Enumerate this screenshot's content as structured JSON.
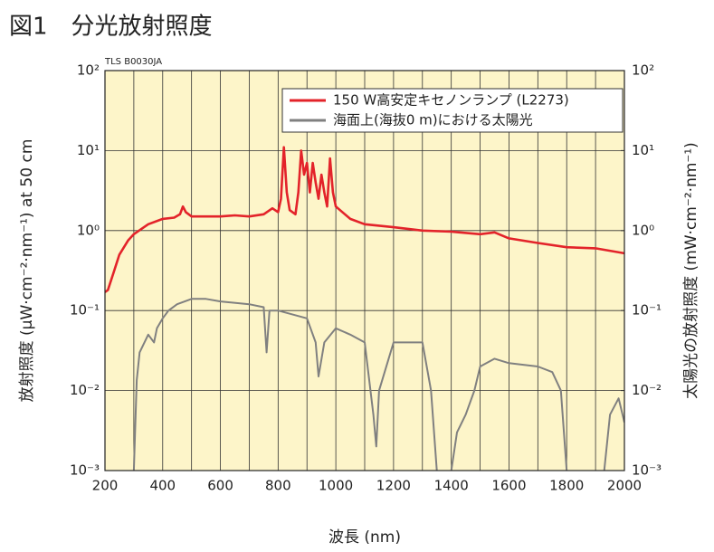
{
  "chart_data": {
    "type": "line",
    "title": "図1　分光放射照度",
    "annotation": "TLS B0030JA",
    "x_label": "波長 (nm)",
    "y_label": "放射照度 (μW·cm⁻²·nm⁻¹) at 50 cm",
    "y2_label": "太陽光の放射照度 (mW·cm⁻²·nm⁻¹)",
    "xlim": [
      200,
      2000
    ],
    "xticks": [
      200,
      400,
      600,
      800,
      1000,
      1200,
      1400,
      1600,
      1800,
      2000
    ],
    "ylim": [
      0.001,
      100
    ],
    "yticks": [
      {
        "value": 0.001,
        "label": "10⁻³"
      },
      {
        "value": 0.01,
        "label": "10⁻²"
      },
      {
        "value": 0.1,
        "label": "10⁻¹"
      },
      {
        "value": 1,
        "label": "10⁰"
      },
      {
        "value": 10,
        "label": "10¹"
      },
      {
        "value": 100,
        "label": "10²"
      }
    ],
    "y2lim": [
      0.001,
      100
    ],
    "y2ticks": [
      {
        "value": 0.001,
        "label": "10⁻³"
      },
      {
        "value": 0.01,
        "label": "10⁻²"
      },
      {
        "value": 0.1,
        "label": "10⁻¹"
      },
      {
        "value": 1,
        "label": "10⁰"
      },
      {
        "value": 10,
        "label": "10¹"
      },
      {
        "value": 100,
        "label": "10²"
      }
    ],
    "log_scale": true,
    "grid": true,
    "legend": "upper right",
    "background": "#fdf5c9",
    "series": [
      {
        "name": "150 W高安定キセノンランプ (L2273)",
        "color": "#e3232a",
        "x": [
          200,
          210,
          230,
          250,
          280,
          300,
          350,
          400,
          440,
          460,
          470,
          480,
          500,
          600,
          650,
          700,
          750,
          780,
          800,
          810,
          820,
          830,
          840,
          860,
          870,
          880,
          890,
          900,
          910,
          920,
          930,
          940,
          950,
          960,
          970,
          980,
          990,
          1000,
          1050,
          1100,
          1200,
          1300,
          1400,
          1500,
          1550,
          1600,
          1700,
          1800,
          1900,
          2000
        ],
        "values": [
          0.17,
          0.18,
          0.3,
          0.5,
          0.75,
          0.9,
          1.2,
          1.4,
          1.45,
          1.6,
          2.0,
          1.7,
          1.5,
          1.5,
          1.55,
          1.5,
          1.6,
          1.9,
          1.7,
          2.5,
          11,
          3,
          1.8,
          1.6,
          3,
          10,
          5,
          7,
          3,
          7,
          4,
          2.5,
          5,
          3,
          2,
          8,
          3,
          2,
          1.4,
          1.2,
          1.1,
          1.0,
          0.97,
          0.9,
          0.95,
          0.8,
          0.7,
          0.62,
          0.6,
          0.52
        ]
      },
      {
        "name": "海面上(海抜0 m)における太陽光",
        "color": "#808080",
        "axis": "y2",
        "x": [
          300,
          310,
          320,
          350,
          370,
          380,
          400,
          420,
          450,
          500,
          550,
          600,
          700,
          750,
          760,
          770,
          800,
          900,
          930,
          940,
          960,
          1000,
          1050,
          1100,
          1130,
          1140,
          1150,
          1200,
          1300,
          1330,
          1350,
          1370,
          1400,
          1420,
          1450,
          1480,
          1500,
          1550,
          1600,
          1700,
          1750,
          1780,
          1800,
          1900,
          1930,
          1950,
          1980,
          2000
        ],
        "values": [
          0.001,
          0.0135,
          0.03,
          0.05,
          0.04,
          0.06,
          0.08,
          0.1,
          0.12,
          0.14,
          0.14,
          0.13,
          0.12,
          0.11,
          0.03,
          0.1,
          0.1,
          0.08,
          0.04,
          0.015,
          0.04,
          0.06,
          0.05,
          0.04,
          0.005,
          0.002,
          0.01,
          0.04,
          0.04,
          0.01,
          0.001,
          null,
          0.001,
          0.003,
          0.005,
          0.01,
          0.02,
          0.025,
          0.022,
          0.02,
          0.017,
          0.01,
          0.001,
          null,
          0.001,
          0.005,
          0.008,
          0.004
        ]
      }
    ]
  }
}
